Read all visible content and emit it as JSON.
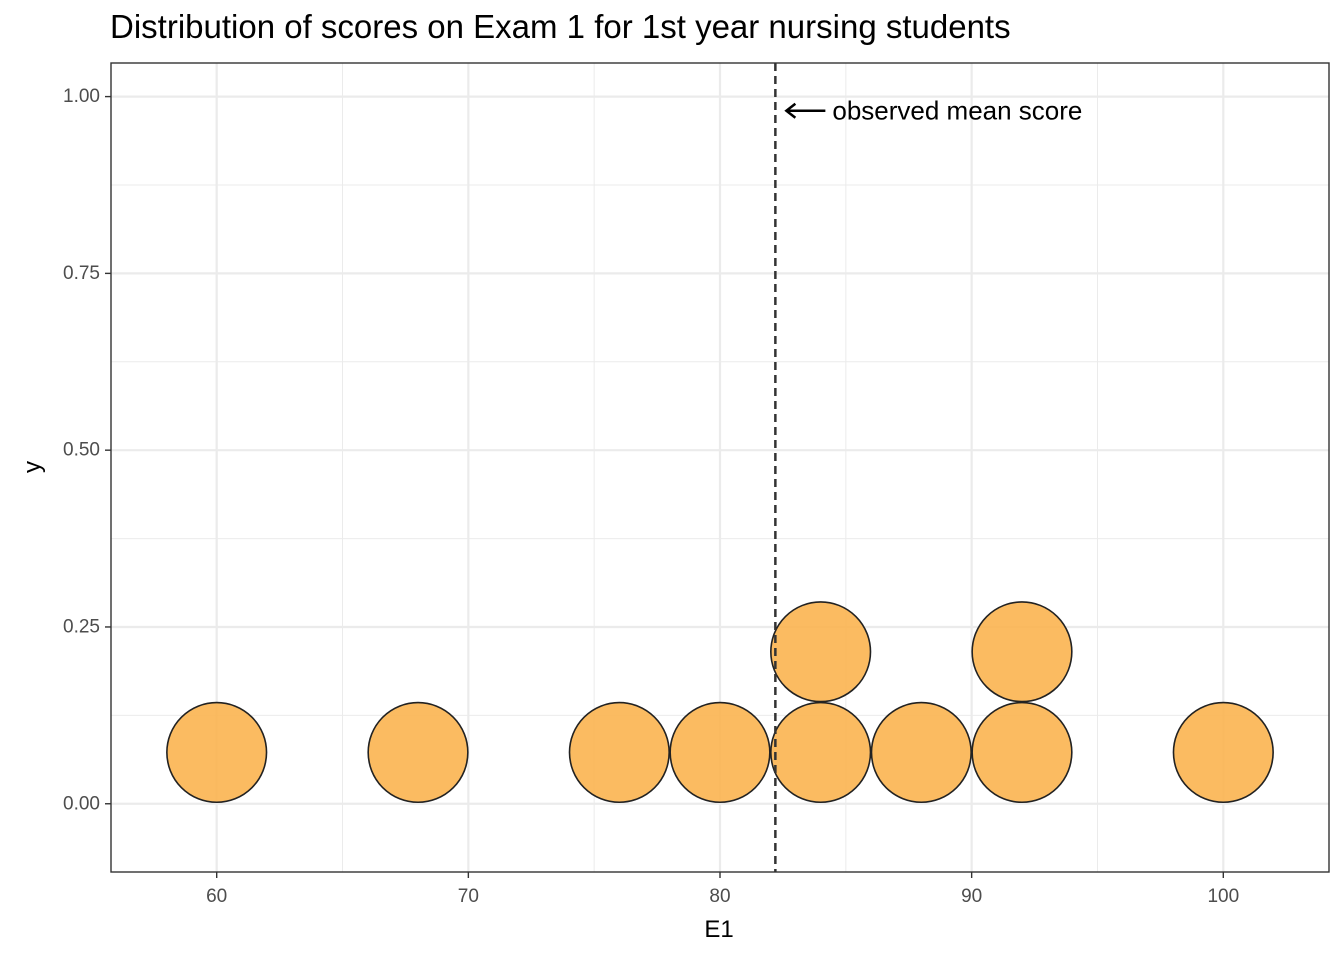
{
  "chart_data": {
    "type": "scatter",
    "subtype": "dotplot",
    "title": "Distribution of scores on Exam 1 for 1st year nursing students",
    "xlabel": "E1",
    "ylabel": "y",
    "xlim": [
      55.8,
      104.2
    ],
    "ylim": [
      -0.0965,
      1.0475
    ],
    "x_ticks": [
      "60",
      "70",
      "80",
      "90",
      "100"
    ],
    "x_tick_values": [
      60,
      70,
      80,
      90,
      100
    ],
    "y_ticks": [
      "0.00",
      "0.25",
      "0.50",
      "0.75",
      "1.00"
    ],
    "y_tick_values": [
      0,
      0.25,
      0.5,
      0.75,
      1.0
    ],
    "grid": true,
    "theme": "bw",
    "point_fill": "#fbb450",
    "point_stroke": "#222222",
    "points": [
      {
        "x": 60,
        "stack": 1
      },
      {
        "x": 68,
        "stack": 1
      },
      {
        "x": 76,
        "stack": 1
      },
      {
        "x": 80,
        "stack": 1
      },
      {
        "x": 84,
        "stack": 1
      },
      {
        "x": 84,
        "stack": 2
      },
      {
        "x": 88,
        "stack": 1
      },
      {
        "x": 92,
        "stack": 1
      },
      {
        "x": 92,
        "stack": 2
      },
      {
        "x": 100,
        "stack": 1
      }
    ],
    "mean_line": {
      "x": 82.2,
      "style": "dashed",
      "color": "#333333"
    },
    "annotation": {
      "text": "observed mean score",
      "arrow": "left",
      "y": 0.98
    }
  }
}
